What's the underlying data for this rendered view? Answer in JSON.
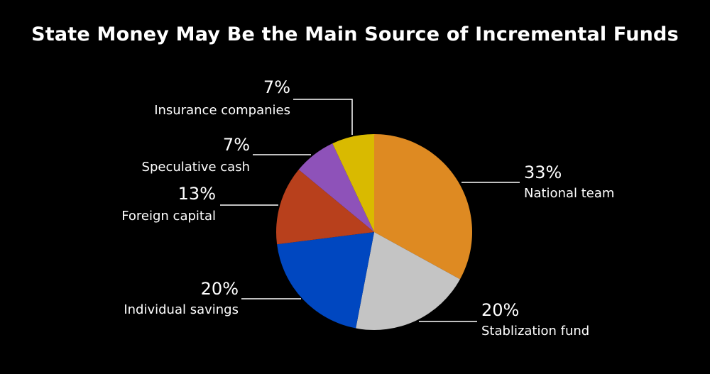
{
  "title": "State Money May Be the Main Source of Incremental Funds",
  "chart_data": {
    "type": "pie",
    "title": "State Money May Be the Main Source of Incremental Funds",
    "slices": [
      {
        "label": "National team",
        "value": 33,
        "value_label": "33%",
        "color": "#DE8A22"
      },
      {
        "label": "Stablization fund",
        "value": 20,
        "value_label": "20%",
        "color": "#C4C4C4"
      },
      {
        "label": "Individual savings",
        "value": 20,
        "value_label": "20%",
        "color": "#0047C0"
      },
      {
        "label": "Foreign capital",
        "value": 13,
        "value_label": "13%",
        "color": "#B8401C"
      },
      {
        "label": "Speculative cash",
        "value": 7,
        "value_label": "7%",
        "color": "#8E52B9"
      },
      {
        "label": "Insurance companies",
        "value": 7,
        "value_label": "7%",
        "color": "#D9BA00"
      }
    ],
    "start": "12 o'clock",
    "direction": "clockwise",
    "legend": "none (direct labels)"
  }
}
